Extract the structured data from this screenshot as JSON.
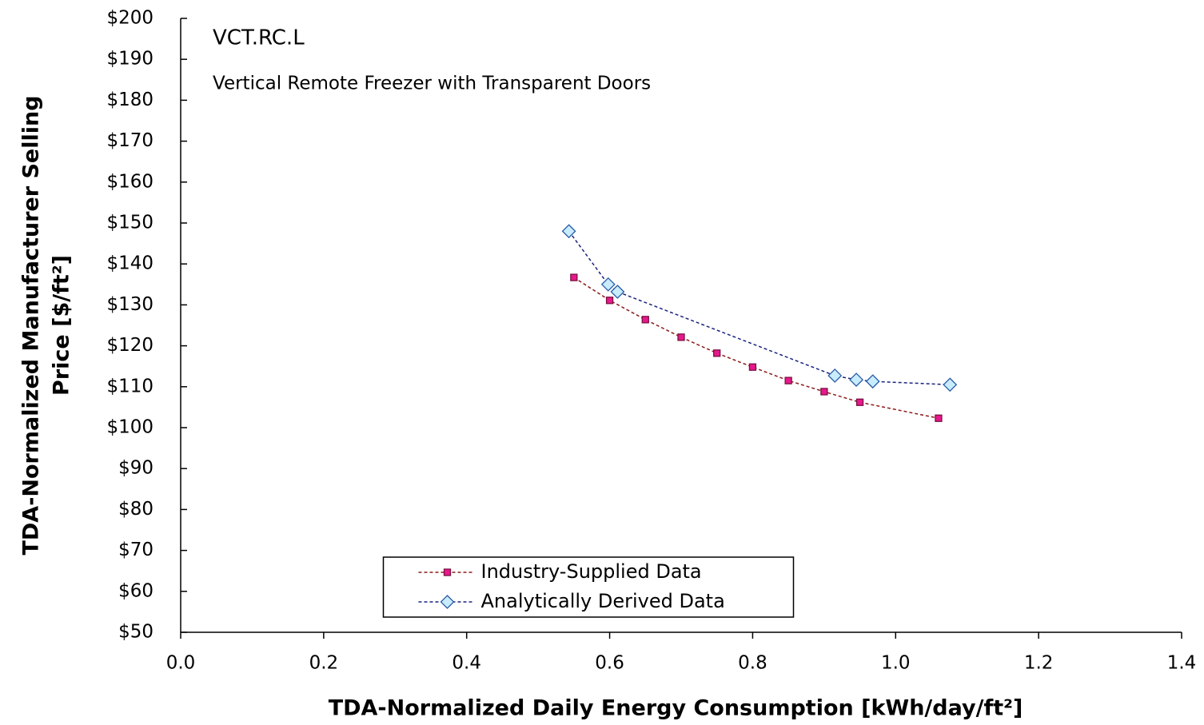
{
  "chart_data": {
    "type": "line",
    "annotations": [
      "VCT.RC.L",
      "Vertical Remote Freezer with Transparent Doors"
    ],
    "xlabel": "TDA-Normalized Daily Energy Consumption [kWh/day/ft²]",
    "ylabel": [
      "TDA-Normalized Manufacturer Selling",
      "Price [$/ft²]"
    ],
    "xlim": [
      0,
      1.4
    ],
    "xticks": [
      {
        "value": 0,
        "label": "0.0"
      },
      0.2,
      0.4,
      0.6,
      0.8,
      {
        "value": 1,
        "label": "1.0"
      },
      1.2,
      1.4
    ],
    "ylim": [
      50,
      200
    ],
    "yticks": [
      {
        "value": 50,
        "label": "$50"
      },
      {
        "value": 60,
        "label": "$60"
      },
      {
        "value": 70,
        "label": "$70"
      },
      {
        "value": 80,
        "label": "$80"
      },
      {
        "value": 90,
        "label": "$90"
      },
      {
        "value": 100,
        "label": "$100"
      },
      {
        "value": 110,
        "label": "$110"
      },
      {
        "value": 120,
        "label": "$120"
      },
      {
        "value": 130,
        "label": "$130"
      },
      {
        "value": 140,
        "label": "$140"
      },
      {
        "value": 150,
        "label": "$150"
      },
      {
        "value": 160,
        "label": "$160"
      },
      {
        "value": 170,
        "label": "$170"
      },
      {
        "value": 180,
        "label": "$180"
      },
      {
        "value": 190,
        "label": "$190"
      },
      {
        "value": 200,
        "label": "$200"
      }
    ],
    "grid": false,
    "legend": "lower center",
    "series": [
      {
        "name": "Industry-Supplied Data",
        "color": "#8b1a1a",
        "marker": "square",
        "marker_fill": "#e6198c",
        "x": [
          0.55,
          0.6,
          0.65,
          0.7,
          0.75,
          0.8,
          0.85,
          0.9,
          0.95,
          1.06
        ],
        "values": [
          136.7,
          131.1,
          126.4,
          122.1,
          118.2,
          114.8,
          111.5,
          108.8,
          106.2,
          102.3
        ]
      },
      {
        "name": "Analytically Derived Data",
        "color": "#1a237e",
        "marker": "diamond",
        "marker_fill": "#c8ecfc",
        "x": [
          0.543,
          0.598,
          0.611,
          0.915,
          0.945,
          0.968,
          1.076
        ],
        "values": [
          148.0,
          135.0,
          133.2,
          112.7,
          111.7,
          111.3,
          110.5
        ]
      }
    ]
  }
}
